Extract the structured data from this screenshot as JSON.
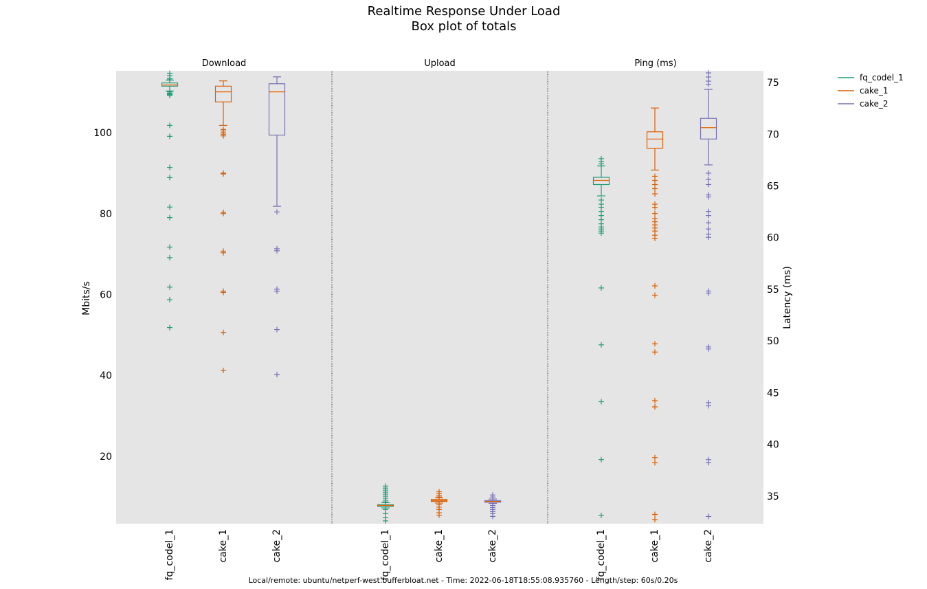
{
  "chart_data": {
    "type": "box",
    "title": "Realtime Response Under Load",
    "subtitle": "Box plot of totals",
    "footer": "Local/remote: ubuntu/netperf-west.bufferbloat.net - Time: 2022-06-18T18:55:08.935760 - Length/step: 60s/0.20s",
    "left_axis": {
      "label": "Mbits/s",
      "range": [
        3.5,
        115.5
      ],
      "ticks": [
        20,
        40,
        60,
        80,
        100
      ],
      "tick_labels": [
        "20",
        "40",
        "60",
        "80",
        "100"
      ]
    },
    "right_axis": {
      "label": "Latency (ms)",
      "range": [
        32.4,
        76.2
      ],
      "ticks": [
        35,
        40,
        45,
        50,
        55,
        60,
        65,
        70,
        75
      ],
      "tick_labels": [
        "35",
        "40",
        "45",
        "50",
        "55",
        "60",
        "65",
        "70",
        "75"
      ]
    },
    "legend": {
      "placement": "outside-top-right",
      "entries": [
        "fq_codel_1",
        "cake_1",
        "cake_2"
      ]
    },
    "colors": {
      "fq_codel_1": "#1b9e77",
      "cake_1": "#d95f02",
      "cake_2": "#7570b3",
      "plot_bg": "#e5e5e5",
      "median": "#e66101"
    },
    "panels": [
      {
        "title": "Download",
        "axis": "left",
        "categories": [
          "fq_codel_1",
          "cake_1",
          "cake_2"
        ],
        "boxes": [
          {
            "name": "fq_codel_1",
            "whislo": 110.5,
            "q1": 111.7,
            "med": 112.0,
            "q3": 112.5,
            "whishi": 113.2,
            "fliers": [
              114.9,
              114.3,
              113.6,
              113.3,
              110.3,
              110.0,
              109.8,
              109.6,
              109.4,
              102.0,
              99.3,
              91.6,
              89.1,
              81.8,
              79.2,
              71.9,
              69.3,
              62.0,
              58.9,
              52.0
            ]
          },
          {
            "name": "cake_1",
            "whislo": 102.0,
            "q1": 107.8,
            "med": 110.3,
            "q3": 111.7,
            "whishi": 113.0,
            "fliers": [
              101.0,
              100.6,
              100.2,
              99.8,
              99.4,
              90.2,
              90.0,
              80.5,
              80.2,
              70.9,
              70.5,
              61.0,
              60.7,
              50.8,
              41.4
            ]
          },
          {
            "name": "cake_2",
            "whislo": 82.0,
            "q1": 99.6,
            "med": 110.3,
            "q3": 112.3,
            "whishi": 114.0,
            "fliers": [
              80.6,
              71.5,
              71.0,
              61.5,
              61.0,
              51.5,
              40.4
            ]
          }
        ]
      },
      {
        "title": "Upload",
        "axis": "left",
        "categories": [
          "fq_codel_1",
          "cake_1",
          "cake_2"
        ],
        "boxes": [
          {
            "name": "fq_codel_1",
            "whislo": 7.4,
            "q1": 7.8,
            "med": 8.0,
            "q3": 8.2,
            "whishi": 8.7,
            "fliers": [
              12.8,
              12.3,
              11.8,
              11.3,
              10.8,
              10.3,
              9.8,
              9.3,
              8.9,
              7.0,
              6.0,
              5.0,
              4.2
            ]
          },
          {
            "name": "cake_1",
            "whislo": 8.6,
            "q1": 9.0,
            "med": 9.2,
            "q3": 9.5,
            "whishi": 9.9,
            "fliers": [
              11.4,
              10.9,
              10.4,
              10.1,
              8.2,
              7.6,
              7.0,
              6.2,
              5.6
            ]
          },
          {
            "name": "cake_2",
            "whislo": 8.5,
            "q1": 8.8,
            "med": 9.0,
            "q3": 9.2,
            "whishi": 9.6,
            "fliers": [
              10.6,
              10.1,
              8.0,
              7.5,
              7.0,
              6.5,
              6.0,
              5.3
            ]
          }
        ]
      },
      {
        "title": "Ping (ms)",
        "axis": "right",
        "categories": [
          "fq_codel_1",
          "cake_1",
          "cake_2"
        ],
        "boxes": [
          {
            "name": "fq_codel_1",
            "whislo": 64.1,
            "q1": 65.2,
            "med": 65.6,
            "q3": 65.9,
            "whishi": 67.0,
            "fliers": [
              67.7,
              67.4,
              67.2,
              67.0,
              63.7,
              63.3,
              63.0,
              62.6,
              62.2,
              61.8,
              61.4,
              61.1,
              60.9,
              60.7,
              60.5,
              55.2,
              49.7,
              44.2,
              38.6,
              33.2
            ]
          },
          {
            "name": "cake_1",
            "whislo": 66.6,
            "q1": 68.7,
            "med": 69.6,
            "q3": 70.3,
            "whishi": 72.6,
            "fliers": [
              66.0,
              65.6,
              65.2,
              64.8,
              64.3,
              63.3,
              63.0,
              62.4,
              61.9,
              61.6,
              61.3,
              61.0,
              60.7,
              60.3,
              60.0,
              55.4,
              54.5,
              49.8,
              49.0,
              44.3,
              43.7,
              38.8,
              38.3,
              33.3,
              32.8
            ]
          },
          {
            "name": "cake_2",
            "whislo": 67.1,
            "q1": 69.6,
            "med": 70.7,
            "q3": 71.6,
            "whishi": 74.4,
            "fliers": [
              76.0,
              75.6,
              75.2,
              74.9,
              66.3,
              65.7,
              65.2,
              64.2,
              64.0,
              62.6,
              62.2,
              61.5,
              60.9,
              60.4,
              60.1,
              54.9,
              54.7,
              49.5,
              49.3,
              44.1,
              43.8,
              38.6,
              38.3,
              33.1
            ]
          }
        ]
      }
    ]
  }
}
